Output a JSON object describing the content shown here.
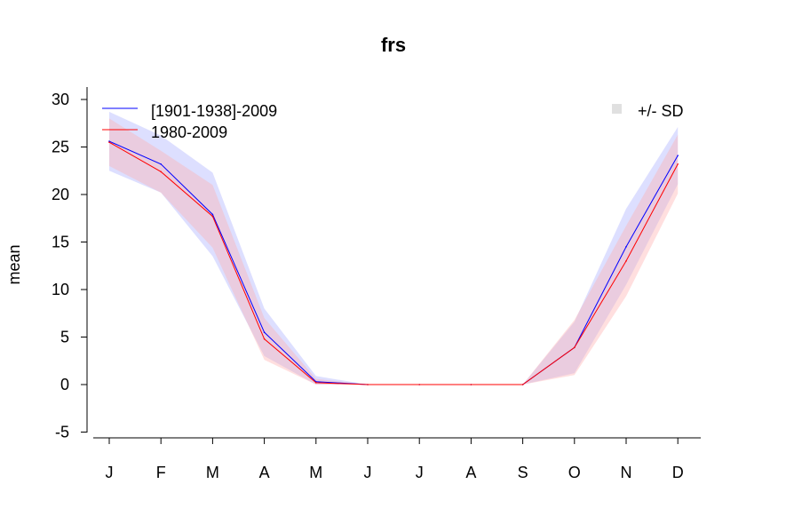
{
  "chart_data": {
    "type": "line",
    "title": "frs",
    "xlabel": "",
    "ylabel": "mean",
    "categories": [
      "J",
      "F",
      "M",
      "A",
      "M",
      "J",
      "J",
      "A",
      "S",
      "O",
      "N",
      "D"
    ],
    "yticks": [
      -5,
      0,
      5,
      10,
      15,
      20,
      25,
      30
    ],
    "ylim": [
      -5.5,
      31.5
    ],
    "grid": false,
    "series": [
      {
        "name": "[1901-1938]-2009",
        "color": "#0000ff",
        "band_color": "#aab0ff",
        "values": [
          25.6,
          23.2,
          17.9,
          5.5,
          0.3,
          0.0,
          0.0,
          0.0,
          0.0,
          3.9,
          14.5,
          24.1
        ],
        "upper": [
          28.7,
          26.2,
          22.3,
          8.0,
          0.9,
          0.0,
          0.0,
          0.0,
          0.0,
          6.6,
          18.5,
          27.1
        ],
        "lower": [
          22.5,
          20.2,
          13.5,
          3.0,
          0.0,
          0.0,
          0.0,
          0.0,
          0.0,
          1.2,
          10.5,
          21.1
        ]
      },
      {
        "name": "1980-2009",
        "color": "#ff0000",
        "band_color": "#ffb0b0",
        "values": [
          25.5,
          22.4,
          17.7,
          4.8,
          0.2,
          0.0,
          0.0,
          0.0,
          0.0,
          3.9,
          13.0,
          23.2
        ],
        "upper": [
          28.0,
          24.6,
          21.0,
          7.0,
          0.6,
          0.0,
          0.0,
          0.0,
          0.0,
          6.8,
          16.7,
          26.3
        ],
        "lower": [
          23.0,
          20.2,
          14.4,
          2.6,
          0.0,
          0.0,
          0.0,
          0.0,
          0.0,
          1.0,
          9.3,
          20.1
        ]
      }
    ],
    "legend": {
      "placement": "top-left",
      "band_label": "+/- SD",
      "band_label_placement": "top-right",
      "band_swatch_color": "#e0e0e0"
    }
  }
}
